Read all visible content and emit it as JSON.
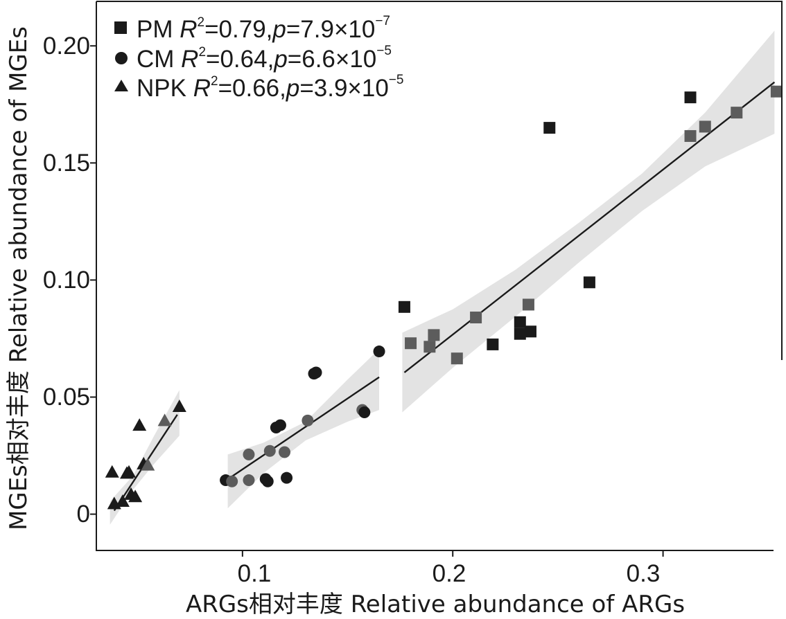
{
  "chart_data": {
    "type": "scatter",
    "title": "",
    "xlabel": "ARGs相对丰度 Relative abundance of ARGs",
    "ylabel": "MGEs相对丰度 Relative abundance of MGEs",
    "xlim": [
      0.0305,
      0.3565
    ],
    "ylim": [
      -0.0155,
      0.219
    ],
    "xticks": [
      0.1,
      0.2,
      0.3
    ],
    "xtick_labels": [
      "0.1",
      "0.2",
      "0.3"
    ],
    "yticks": [
      0,
      0.05,
      0.1,
      0.15,
      0.2
    ],
    "ytick_labels": [
      "0",
      "0.05",
      "0.10",
      "0.15",
      "0.20"
    ],
    "grid": false,
    "legend_position": "top-left",
    "series": [
      {
        "name": "PM",
        "marker": "square",
        "legend_r2": "=0.79,",
        "legend_p_mantissa": "=7.9×10",
        "legend_p_exp": "−7",
        "fit": {
          "x": [
            0.177,
            0.353
          ],
          "y": [
            0.0605,
            0.1845
          ]
        },
        "band": {
          "x": [
            0.176,
            0.2,
            0.23,
            0.26,
            0.29,
            0.32,
            0.353
          ],
          "lower": [
            0.0435,
            0.0625,
            0.0845,
            0.1075,
            0.1295,
            0.1485,
            0.1625
          ],
          "upper": [
            0.0775,
            0.0875,
            0.1045,
            0.1245,
            0.1455,
            0.1715,
            0.2065
          ]
        },
        "points": [
          {
            "x": 0.177,
            "y": 0.0885,
            "shade": "dark"
          },
          {
            "x": 0.18,
            "y": 0.073,
            "shade": "gray"
          },
          {
            "x": 0.189,
            "y": 0.0715,
            "shade": "gray"
          },
          {
            "x": 0.191,
            "y": 0.0765,
            "shade": "gray"
          },
          {
            "x": 0.202,
            "y": 0.0665,
            "shade": "gray"
          },
          {
            "x": 0.211,
            "y": 0.084,
            "shade": "gray"
          },
          {
            "x": 0.219,
            "y": 0.0725,
            "shade": "dark"
          },
          {
            "x": 0.232,
            "y": 0.082,
            "shade": "dark"
          },
          {
            "x": 0.232,
            "y": 0.077,
            "shade": "dark"
          },
          {
            "x": 0.236,
            "y": 0.0895,
            "shade": "gray"
          },
          {
            "x": 0.237,
            "y": 0.078,
            "shade": "dark"
          },
          {
            "x": 0.246,
            "y": 0.165,
            "shade": "dark"
          },
          {
            "x": 0.265,
            "y": 0.099,
            "shade": "dark"
          },
          {
            "x": 0.313,
            "y": 0.178,
            "shade": "dark"
          },
          {
            "x": 0.313,
            "y": 0.1615,
            "shade": "gray"
          },
          {
            "x": 0.32,
            "y": 0.1655,
            "shade": "gray"
          },
          {
            "x": 0.335,
            "y": 0.1715,
            "shade": "gray"
          },
          {
            "x": 0.354,
            "y": 0.1805,
            "shade": "gray"
          }
        ]
      },
      {
        "name": "CM",
        "marker": "circle",
        "legend_r2": "=0.64,",
        "legend_p_mantissa": "=6.6×10",
        "legend_p_exp": "−5",
        "fit": {
          "x": [
            0.094,
            0.165
          ],
          "y": [
            0.0155,
            0.0585
          ]
        },
        "band": {
          "x": [
            0.093,
            0.11,
            0.13,
            0.15,
            0.165
          ],
          "lower": [
            0.0025,
            0.0175,
            0.0315,
            0.0395,
            0.0445
          ],
          "upper": [
            0.0255,
            0.0305,
            0.0395,
            0.0575,
            0.0705
          ]
        },
        "points": [
          {
            "x": 0.092,
            "y": 0.0145,
            "shade": "dark"
          },
          {
            "x": 0.095,
            "y": 0.014,
            "shade": "gray"
          },
          {
            "x": 0.103,
            "y": 0.0145,
            "shade": "gray"
          },
          {
            "x": 0.103,
            "y": 0.0255,
            "shade": "gray"
          },
          {
            "x": 0.111,
            "y": 0.015,
            "shade": "dark"
          },
          {
            "x": 0.112,
            "y": 0.014,
            "shade": "dark"
          },
          {
            "x": 0.113,
            "y": 0.027,
            "shade": "gray"
          },
          {
            "x": 0.116,
            "y": 0.037,
            "shade": "dark"
          },
          {
            "x": 0.118,
            "y": 0.038,
            "shade": "dark"
          },
          {
            "x": 0.12,
            "y": 0.0265,
            "shade": "gray"
          },
          {
            "x": 0.121,
            "y": 0.0155,
            "shade": "dark"
          },
          {
            "x": 0.131,
            "y": 0.04,
            "shade": "gray"
          },
          {
            "x": 0.134,
            "y": 0.06,
            "shade": "dark"
          },
          {
            "x": 0.135,
            "y": 0.0605,
            "shade": "dark"
          },
          {
            "x": 0.157,
            "y": 0.0445,
            "shade": "gray"
          },
          {
            "x": 0.158,
            "y": 0.0435,
            "shade": "dark"
          },
          {
            "x": 0.165,
            "y": 0.0695,
            "shade": "dark"
          }
        ]
      },
      {
        "name": "NPK",
        "marker": "triangle",
        "legend_r2": "=0.66,",
        "legend_p_mantissa": "=3.9×10",
        "legend_p_exp": "−5",
        "fit": {
          "x": [
            0.039,
            0.069
          ],
          "y": [
            0.0015,
            0.0425
          ]
        },
        "band": {
          "x": [
            0.037,
            0.048,
            0.058,
            0.07
          ],
          "lower": [
            -0.0045,
            0.0105,
            0.0215,
            0.0335
          ],
          "upper": [
            0.0055,
            0.0165,
            0.0335,
            0.053
          ]
        },
        "points": [
          {
            "x": 0.038,
            "y": 0.018,
            "shade": "dark"
          },
          {
            "x": 0.039,
            "y": 0.0045,
            "shade": "dark"
          },
          {
            "x": 0.043,
            "y": 0.0055,
            "shade": "dark"
          },
          {
            "x": 0.045,
            "y": 0.0175,
            "shade": "dark"
          },
          {
            "x": 0.046,
            "y": 0.018,
            "shade": "dark"
          },
          {
            "x": 0.047,
            "y": 0.0085,
            "shade": "dark"
          },
          {
            "x": 0.049,
            "y": 0.0075,
            "shade": "dark"
          },
          {
            "x": 0.051,
            "y": 0.038,
            "shade": "dark"
          },
          {
            "x": 0.053,
            "y": 0.0215,
            "shade": "dark"
          },
          {
            "x": 0.055,
            "y": 0.021,
            "shade": "gray"
          },
          {
            "x": 0.063,
            "y": 0.04,
            "shade": "gray"
          },
          {
            "x": 0.07,
            "y": 0.046,
            "shade": "dark"
          }
        ]
      }
    ]
  },
  "legend": {
    "r_letter": "R",
    "r_sup": "2",
    "p_letter": "p"
  },
  "colors": {
    "dark": "#1a1a1a",
    "gray": "#5c5c5c",
    "band": "#e3e3e3",
    "fit": "#1a1a1a",
    "axis": "#1a1a1a"
  }
}
